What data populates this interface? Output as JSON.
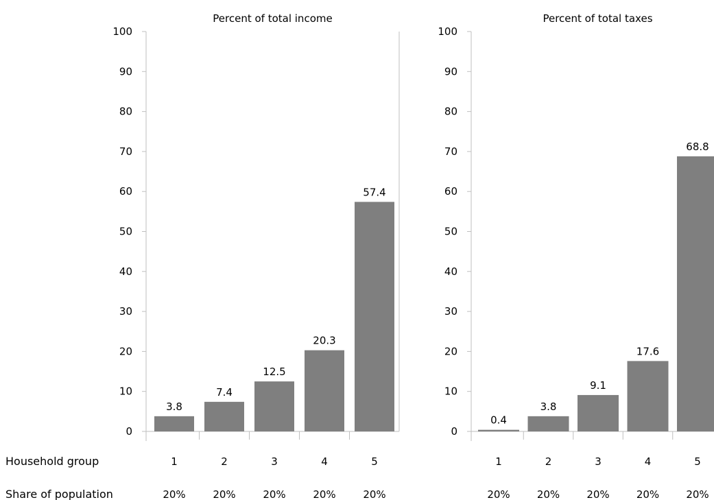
{
  "row_labels": {
    "household_group": "Household group",
    "share_of_population": "Share of population"
  },
  "colors": {
    "bar": "#7f7f7f",
    "axis": "#bfbfbf"
  },
  "chart_data": [
    {
      "type": "bar",
      "title": "Percent of total income",
      "categories": [
        "1",
        "2",
        "3",
        "4",
        "5"
      ],
      "shares": [
        "20%",
        "20%",
        "20%",
        "20%",
        "20%"
      ],
      "values": [
        3.8,
        7.4,
        12.5,
        20.3,
        57.4
      ],
      "value_labels": [
        "3.8",
        "7.4",
        "12.5",
        "20.3",
        "57.4"
      ],
      "yticks": [
        "0",
        "10",
        "20",
        "30",
        "40",
        "50",
        "60",
        "70",
        "80",
        "90",
        "100"
      ],
      "ylim": [
        0,
        100
      ],
      "xlabel": "",
      "ylabel": "",
      "grid": false,
      "legend": "none"
    },
    {
      "type": "bar",
      "title": "Percent of total taxes",
      "categories": [
        "1",
        "2",
        "3",
        "4",
        "5"
      ],
      "shares": [
        "20%",
        "20%",
        "20%",
        "20%",
        "20%"
      ],
      "values": [
        0.4,
        3.8,
        9.1,
        17.6,
        68.8
      ],
      "value_labels": [
        "0.4",
        "3.8",
        "9.1",
        "17.6",
        "68.8"
      ],
      "yticks": [
        "0",
        "10",
        "20",
        "30",
        "40",
        "50",
        "60",
        "70",
        "80",
        "90",
        "100"
      ],
      "ylim": [
        0,
        100
      ],
      "xlabel": "",
      "ylabel": "",
      "grid": false,
      "legend": "none"
    }
  ]
}
